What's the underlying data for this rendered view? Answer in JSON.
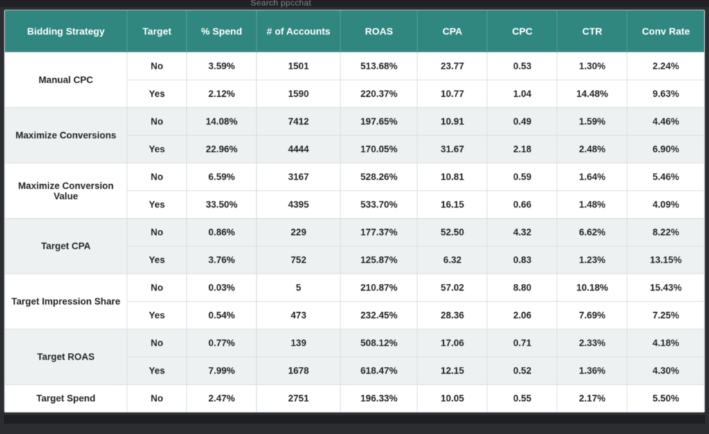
{
  "chrome": {
    "search_hint": "Search ppcchat"
  },
  "table": {
    "headers": {
      "strategy": "Bidding Strategy",
      "target": "Target",
      "spend": "% Spend",
      "accounts": "# of Accounts",
      "roas": "ROAS",
      "cpa": "CPA",
      "cpc": "CPC",
      "ctr": "CTR",
      "conv": "Conv Rate"
    },
    "groups": [
      {
        "strategy": "Manual CPC",
        "group_tint": "white",
        "rows": [
          {
            "tint": "white",
            "target": "No",
            "spend": "3.59%",
            "accounts": "1501",
            "roas": "513.68%",
            "cpa": "23.77",
            "cpc": "0.53",
            "ctr": "1.30%",
            "conv": "2.24%"
          },
          {
            "tint": "white",
            "target": "Yes",
            "spend": "2.12%",
            "accounts": "1590",
            "roas": "220.37%",
            "cpa": "10.77",
            "cpc": "1.04",
            "ctr": "14.48%",
            "conv": "9.63%"
          }
        ]
      },
      {
        "strategy": "Maximize Conversions",
        "group_tint": "tint",
        "rows": [
          {
            "tint": "tint",
            "target": "No",
            "spend": "14.08%",
            "accounts": "7412",
            "roas": "197.65%",
            "cpa": "10.91",
            "cpc": "0.49",
            "ctr": "1.59%",
            "conv": "4.46%"
          },
          {
            "tint": "tint",
            "target": "Yes",
            "spend": "22.96%",
            "accounts": "4444",
            "roas": "170.05%",
            "cpa": "31.67",
            "cpc": "2.18",
            "ctr": "2.48%",
            "conv": "6.90%"
          }
        ]
      },
      {
        "strategy": "Maximize Conversion Value",
        "group_tint": "white",
        "rows": [
          {
            "tint": "white",
            "target": "No",
            "spend": "6.59%",
            "accounts": "3167",
            "roas": "528.26%",
            "cpa": "10.81",
            "cpc": "0.59",
            "ctr": "1.64%",
            "conv": "5.46%"
          },
          {
            "tint": "white",
            "target": "Yes",
            "spend": "33.50%",
            "accounts": "4395",
            "roas": "533.70%",
            "cpa": "16.15",
            "cpc": "0.66",
            "ctr": "1.48%",
            "conv": "4.09%"
          }
        ]
      },
      {
        "strategy": "Target CPA",
        "group_tint": "tint",
        "rows": [
          {
            "tint": "tint",
            "target": "No",
            "spend": "0.86%",
            "accounts": "229",
            "roas": "177.37%",
            "cpa": "52.50",
            "cpc": "4.32",
            "ctr": "6.62%",
            "conv": "8.22%"
          },
          {
            "tint": "tint",
            "target": "Yes",
            "spend": "3.76%",
            "accounts": "752",
            "roas": "125.87%",
            "cpa": "6.32",
            "cpc": "0.83",
            "ctr": "1.23%",
            "conv": "13.15%"
          }
        ]
      },
      {
        "strategy": "Target Impression Share",
        "group_tint": "white",
        "rows": [
          {
            "tint": "white",
            "target": "No",
            "spend": "0.03%",
            "accounts": "5",
            "roas": "210.87%",
            "cpa": "57.02",
            "cpc": "8.80",
            "ctr": "10.18%",
            "conv": "15.43%"
          },
          {
            "tint": "white",
            "target": "Yes",
            "spend": "0.54%",
            "accounts": "473",
            "roas": "232.45%",
            "cpa": "28.36",
            "cpc": "2.06",
            "ctr": "7.69%",
            "conv": "7.25%"
          }
        ]
      },
      {
        "strategy": "Target ROAS",
        "group_tint": "tint",
        "rows": [
          {
            "tint": "tint",
            "target": "No",
            "spend": "0.77%",
            "accounts": "139",
            "roas": "508.12%",
            "cpa": "17.06",
            "cpc": "0.71",
            "ctr": "2.33%",
            "conv": "4.18%"
          },
          {
            "tint": "tint",
            "target": "Yes",
            "spend": "7.99%",
            "accounts": "1678",
            "roas": "618.47%",
            "cpa": "12.15",
            "cpc": "0.52",
            "ctr": "1.36%",
            "conv": "4.30%"
          }
        ]
      },
      {
        "strategy": "Target Spend",
        "group_tint": "white",
        "rows": [
          {
            "tint": "white",
            "target": "No",
            "spend": "2.47%",
            "accounts": "2751",
            "roas": "196.33%",
            "cpa": "10.05",
            "cpc": "0.55",
            "ctr": "2.17%",
            "conv": "5.50%"
          }
        ]
      }
    ]
  },
  "colors": {
    "header_bg": "#2f8780",
    "header_fg": "#ffffff",
    "row_tint": "#eef1f2",
    "row_white": "#ffffff",
    "border": "#d9dcde",
    "page_bg": "#2b2d30"
  }
}
